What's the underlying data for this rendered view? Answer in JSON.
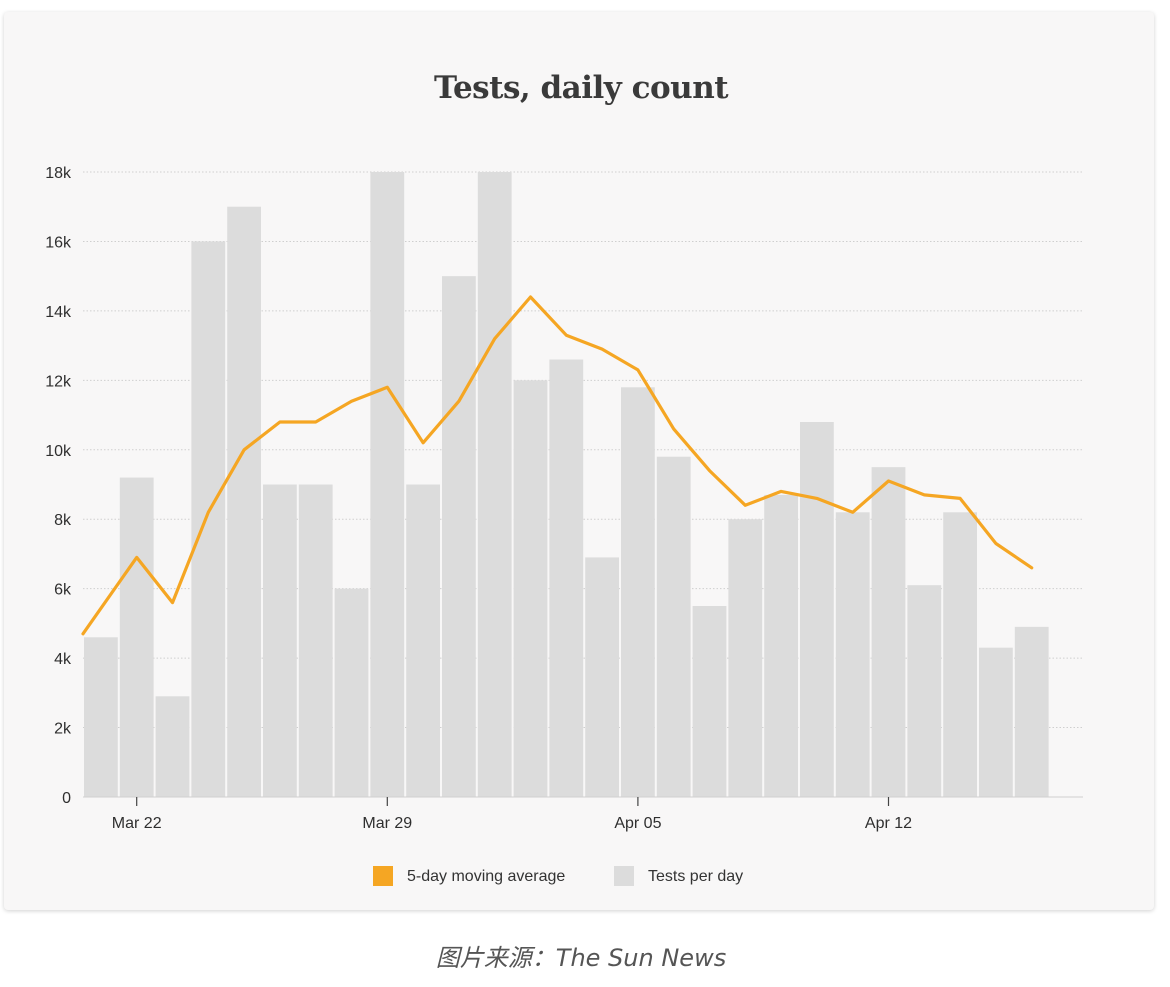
{
  "chart_data": {
    "type": "bar",
    "title": "Tests, daily count",
    "xlabel": "",
    "ylabel": "",
    "ylim": [
      0,
      18000
    ],
    "yticks": [
      0,
      2000,
      4000,
      6000,
      8000,
      10000,
      12000,
      14000,
      16000,
      18000
    ],
    "ytick_labels": [
      "0",
      "2k",
      "4k",
      "6k",
      "8k",
      "10k",
      "12k",
      "14k",
      "16k",
      "18k"
    ],
    "categories": [
      "Mar 21",
      "Mar 22",
      "Mar 23",
      "Mar 24",
      "Mar 25",
      "Mar 26",
      "Mar 27",
      "Mar 28",
      "Mar 29",
      "Mar 30",
      "Mar 31",
      "Apr 01",
      "Apr 02",
      "Apr 03",
      "Apr 04",
      "Apr 05",
      "Apr 06",
      "Apr 07",
      "Apr 08",
      "Apr 09",
      "Apr 10",
      "Apr 11",
      "Apr 12",
      "Apr 13",
      "Apr 14",
      "Apr 15",
      "Apr 16",
      "Apr 17"
    ],
    "xtick_labels": [
      {
        "category": "Mar 22",
        "label": "Mar 22"
      },
      {
        "category": "Mar 29",
        "label": "Mar 29"
      },
      {
        "category": "Apr 05",
        "label": "Apr 05"
      },
      {
        "category": "Apr 12",
        "label": "Apr 12"
      }
    ],
    "grid": true,
    "legend_position": "bottom",
    "series": [
      {
        "name": "Tests per day",
        "type": "bar",
        "color": "#dcdcdc",
        "values": [
          4600,
          9200,
          2900,
          16000,
          17000,
          9000,
          9000,
          6000,
          18000,
          9000,
          15000,
          18000,
          12000,
          12600,
          6900,
          11800,
          9800,
          5500,
          8000,
          8700,
          10800,
          8200,
          9500,
          6100,
          8200,
          4300,
          4900,
          null
        ]
      },
      {
        "name": "5-day moving average",
        "type": "line",
        "color": "#f5a623",
        "values": [
          4700,
          6900,
          5600,
          8200,
          10000,
          10800,
          10800,
          11400,
          11800,
          10200,
          11400,
          13200,
          14400,
          13300,
          12900,
          12300,
          10600,
          9400,
          8400,
          8800,
          8600,
          8200,
          9100,
          8700,
          8600,
          7300,
          6600,
          null
        ]
      }
    ]
  },
  "caption": "图片来源：The Sun News"
}
